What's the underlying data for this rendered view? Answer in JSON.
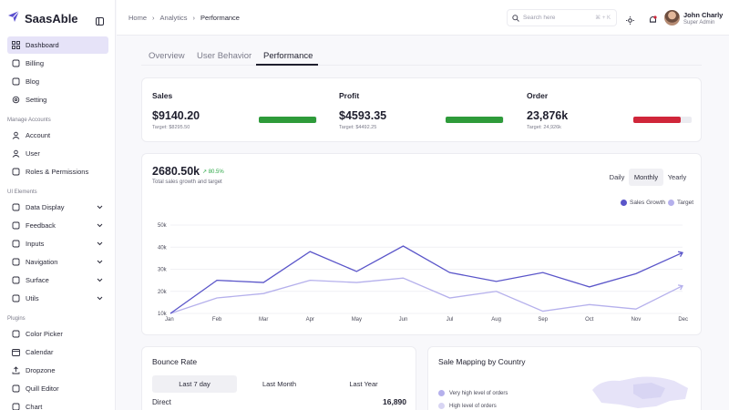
{
  "app": {
    "name": "SaasAble",
    "brand_color": "#5a4fcf"
  },
  "sidebar": {
    "items": [
      {
        "label": "Dashboard",
        "icon": "dashboard-icon",
        "active": true
      },
      {
        "label": "Billing",
        "icon": "billing-icon"
      },
      {
        "label": "Blog",
        "icon": "blog-icon"
      },
      {
        "label": "Setting",
        "icon": "gear-icon"
      }
    ],
    "section_accounts": "Manage Accounts",
    "account_items": [
      {
        "label": "Account",
        "icon": "account-icon"
      },
      {
        "label": "User",
        "icon": "users-icon"
      },
      {
        "label": "Roles & Permissions",
        "icon": "roles-icon"
      }
    ],
    "section_ui": "UI Elements",
    "ui_items": [
      {
        "label": "Data Display",
        "icon": "data-display-icon"
      },
      {
        "label": "Feedback",
        "icon": "feedback-icon"
      },
      {
        "label": "Inputs",
        "icon": "inputs-icon"
      },
      {
        "label": "Navigation",
        "icon": "navigation-icon"
      },
      {
        "label": "Surface",
        "icon": "surface-icon"
      },
      {
        "label": "Utils",
        "icon": "utils-icon"
      }
    ],
    "section_plugins": "Plugins",
    "plugin_items": [
      {
        "label": "Color Picker",
        "icon": "color-picker-icon"
      },
      {
        "label": "Calendar",
        "icon": "calendar-icon"
      },
      {
        "label": "Dropzone",
        "icon": "upload-icon"
      },
      {
        "label": "Quill Editor",
        "icon": "editor-icon"
      },
      {
        "label": "Chart",
        "icon": "chart-icon"
      }
    ]
  },
  "header": {
    "breadcrumb": [
      "Home",
      "Analytics",
      "Performance"
    ],
    "search_placeholder": "Search here",
    "search_shortcut": "⌘ + K",
    "user_name": "John Charly",
    "user_role": "Super Admin"
  },
  "tabs": [
    "Overview",
    "User Behavior",
    "Performance"
  ],
  "kpis": [
    {
      "label": "Sales",
      "value": "$9140.20",
      "target": "Target: $8295.50",
      "progress": 0.98,
      "color": "#2e9b3a"
    },
    {
      "label": "Profit",
      "value": "$4593.35",
      "target": "Target: $4492.25",
      "progress": 0.98,
      "color": "#2e9b3a"
    },
    {
      "label": "Order",
      "value": "23,876k",
      "target": "Target: 24,926k",
      "progress": 0.82,
      "color": "#d0263a"
    }
  ],
  "sales_chart": {
    "total": "2680.50k",
    "growth": "80.5%",
    "subtitle": "Total sales growth and target",
    "ranges": [
      "Daily",
      "Monthly",
      "Yearly"
    ],
    "active_range": "Monthly"
  },
  "chart_data": {
    "type": "line",
    "categories": [
      "Jan",
      "Feb",
      "Mar",
      "Apr",
      "May",
      "Jun",
      "Jul",
      "Aug",
      "Sep",
      "Oct",
      "Nov",
      "Dec"
    ],
    "series": [
      {
        "name": "Sales Growth",
        "color": "#5a55c9",
        "values": [
          10000,
          25000,
          24000,
          38000,
          29000,
          40500,
          28500,
          24500,
          28500,
          22000,
          28000,
          37500
        ]
      },
      {
        "name": "Target",
        "color": "#b5b0ec",
        "values": [
          10000,
          17000,
          19000,
          25000,
          24000,
          26000,
          17000,
          20000,
          11000,
          14000,
          12000,
          22500
        ]
      }
    ],
    "ylim": [
      10000,
      50000
    ],
    "yticks": [
      {
        "v": 10000,
        "l": "10k"
      },
      {
        "v": 20000,
        "l": "20k"
      },
      {
        "v": 30000,
        "l": "30k"
      },
      {
        "v": 40000,
        "l": "40k"
      },
      {
        "v": 50000,
        "l": "50k"
      }
    ],
    "grid": true,
    "legend": "top-right"
  },
  "bounce": {
    "title": "Bounce Rate",
    "periods": [
      "Last 7 day",
      "Last Month",
      "Last Year"
    ],
    "direct_label": "Direct",
    "direct_value": "16,890"
  },
  "map": {
    "title": "Sale Mapping by Country",
    "legend": [
      {
        "label": "Very high level of orders",
        "color": "#b5b0ec"
      },
      {
        "label": "High level of orders",
        "color": "#d8d5f3"
      }
    ]
  }
}
